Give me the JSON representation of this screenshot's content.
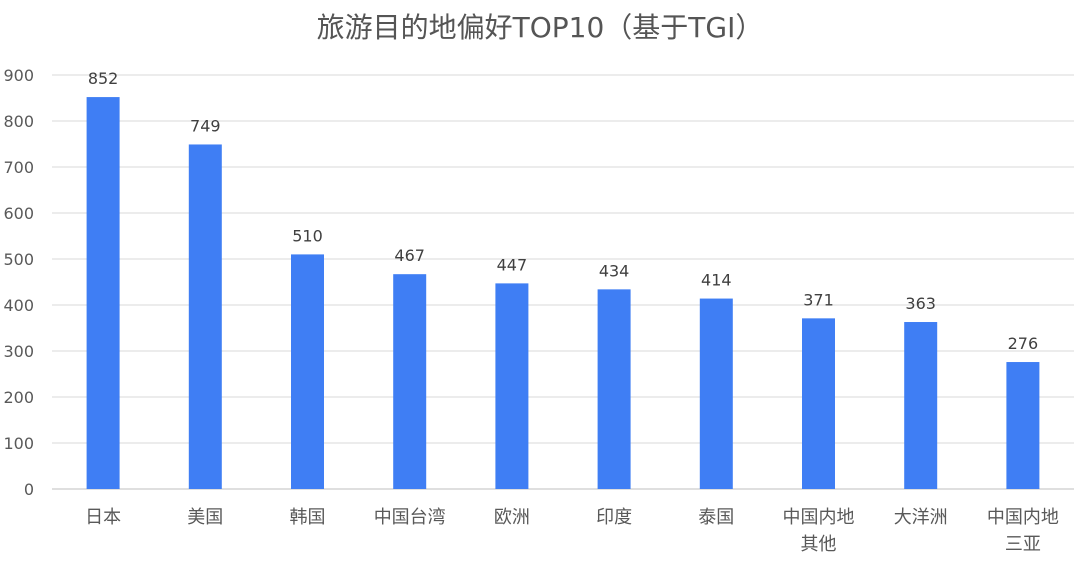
{
  "chart_data": {
    "type": "bar",
    "title": "旅游目的地偏好TOP10（基于TGI）",
    "categories": [
      "日本",
      "美国",
      "韩国",
      "中国台湾",
      "欧洲",
      "印度",
      "泰国",
      "中国内地\n其他",
      "大洋洲",
      "中国内地\n三亚"
    ],
    "values": [
      852,
      749,
      510,
      467,
      447,
      434,
      414,
      371,
      363,
      276
    ],
    "ylim": [
      0,
      900
    ],
    "yticks": [
      0,
      100,
      200,
      300,
      400,
      500,
      600,
      700,
      800,
      900
    ],
    "grid": true,
    "data_labels": true,
    "colors": {
      "bar": "#3f7ef4",
      "grid": "#d9d9d9",
      "axis_text": "#595959",
      "label_text": "#404040"
    }
  }
}
